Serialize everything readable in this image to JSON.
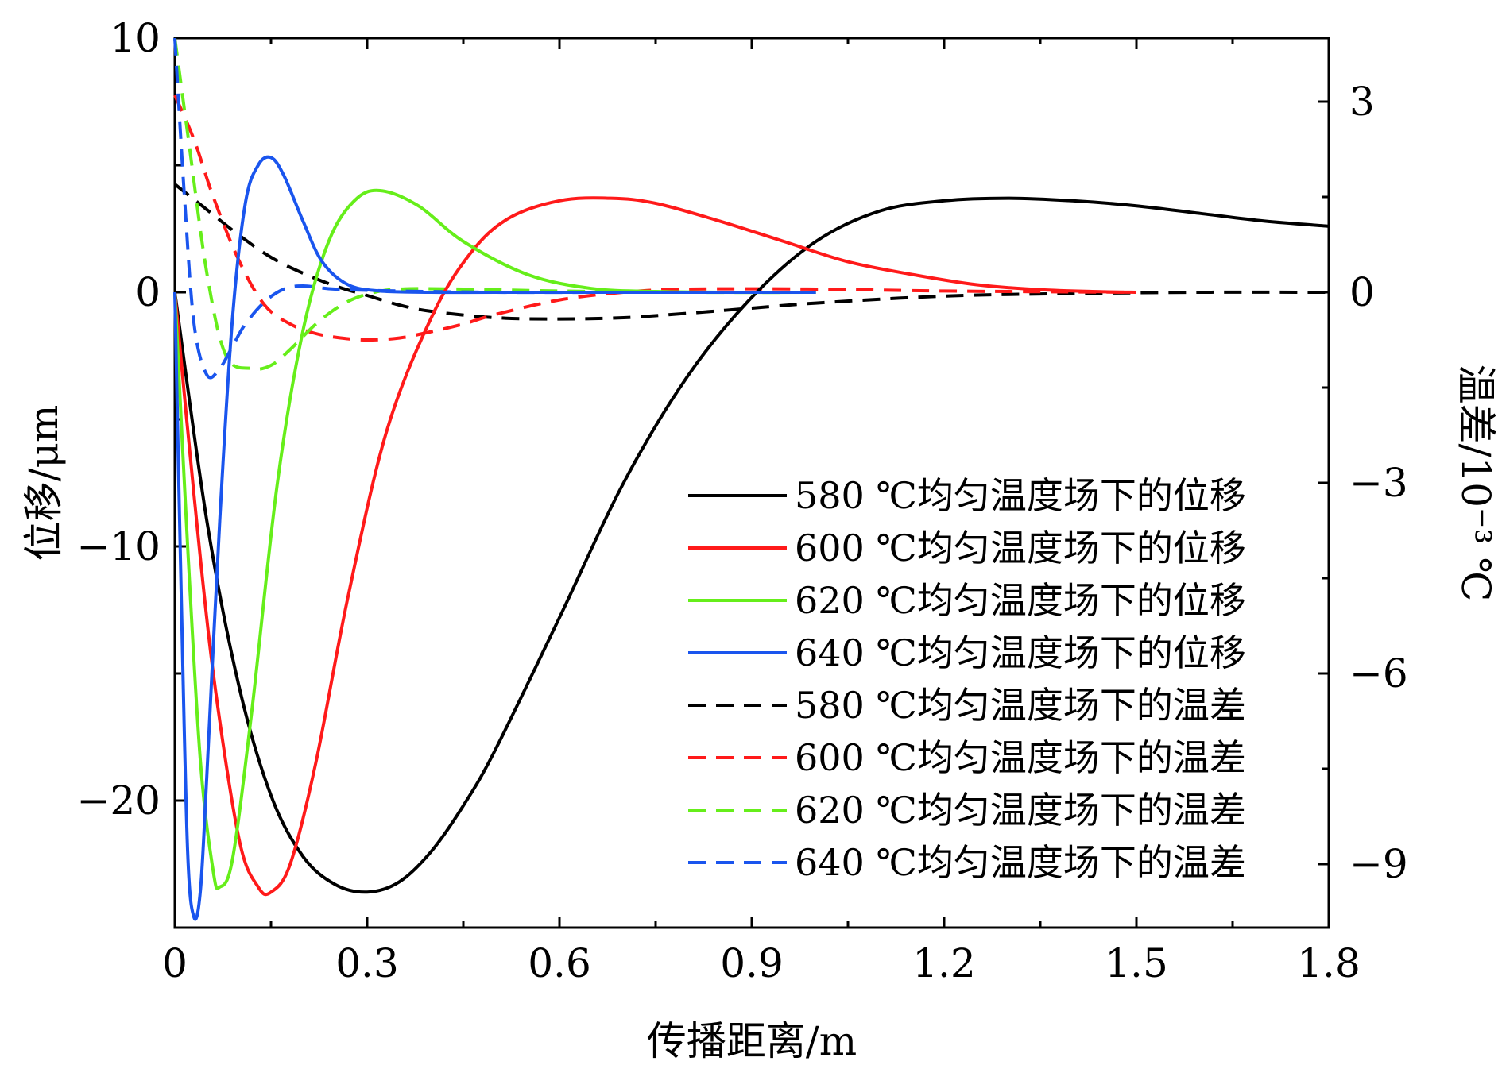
{
  "chart_data": {
    "type": "line",
    "xlabel": "传播距离/m",
    "ylabel_left": "位移/μm",
    "ylabel_right": "温差/10⁻³ ℃",
    "xlim": [
      0,
      1.8
    ],
    "ylim_left": [
      -25,
      10
    ],
    "ylim_right": [
      -10,
      4
    ],
    "x_ticks": [
      0,
      0.3,
      0.6,
      0.9,
      1.2,
      1.5,
      1.8
    ],
    "x_tick_labels": [
      "0",
      "0.3",
      "0.6",
      "0.9",
      "1.2",
      "1.5",
      "1.8"
    ],
    "y_left_ticks": [
      10,
      0,
      -10,
      -20
    ],
    "y_left_tick_labels": [
      "10",
      "0",
      "−10",
      "−20"
    ],
    "y_right_ticks": [
      3,
      0,
      -3,
      -6,
      -9
    ],
    "y_right_tick_labels": [
      "3",
      "0",
      "−3",
      "−6",
      "−9"
    ],
    "legend_position": "lower-right",
    "series": [
      {
        "name": "580 ℃均匀温度场下的位移",
        "axis": "left",
        "style": "solid",
        "color": "#000000",
        "x": [
          0,
          0.05,
          0.1,
          0.15,
          0.2,
          0.25,
          0.3,
          0.35,
          0.4,
          0.45,
          0.5,
          0.6,
          0.7,
          0.8,
          0.9,
          1.0,
          1.1,
          1.2,
          1.3,
          1.4,
          1.5,
          1.6,
          1.7,
          1.8
        ],
        "y": [
          0,
          -9,
          -15.5,
          -19.8,
          -22.2,
          -23.3,
          -23.6,
          -23.2,
          -22,
          -20.2,
          -18,
          -12.8,
          -7.5,
          -3.3,
          -0.2,
          2,
          3.2,
          3.6,
          3.7,
          3.6,
          3.4,
          3.1,
          2.8,
          2.6
        ]
      },
      {
        "name": "600 ℃均匀温度场下的位移",
        "axis": "left",
        "style": "solid",
        "color": "#ff1a1a",
        "x": [
          0,
          0.03,
          0.06,
          0.1,
          0.13,
          0.15,
          0.18,
          0.22,
          0.27,
          0.33,
          0.4,
          0.46,
          0.52,
          0.6,
          0.68,
          0.75,
          0.85,
          0.95,
          1.05,
          1.15,
          1.25,
          1.35,
          1.45,
          1.5
        ],
        "y": [
          0,
          -8,
          -15,
          -21.5,
          -23.4,
          -23.6,
          -22.5,
          -18.5,
          -12,
          -5.5,
          -1,
          1.5,
          2.9,
          3.6,
          3.7,
          3.5,
          2.8,
          2,
          1.2,
          0.7,
          0.3,
          0.1,
          0.02,
          0
        ]
      },
      {
        "name": "620 ℃均匀温度场下的位移",
        "axis": "left",
        "style": "solid",
        "color": "#66ee1a",
        "x": [
          0,
          0.02,
          0.04,
          0.06,
          0.07,
          0.09,
          0.12,
          0.16,
          0.2,
          0.24,
          0.28,
          0.32,
          0.38,
          0.45,
          0.55,
          0.65,
          0.75,
          0.85,
          1.0
        ],
        "y": [
          0,
          -10,
          -18.5,
          -22.8,
          -23.4,
          -22.3,
          -16.5,
          -7.5,
          -1.5,
          2,
          3.6,
          4,
          3.4,
          2,
          0.7,
          0.15,
          0.03,
          0,
          0
        ]
      },
      {
        "name": "640 ℃均匀温度场下的位移",
        "axis": "left",
        "style": "solid",
        "color": "#1a55ee",
        "x": [
          0,
          0.01,
          0.02,
          0.03,
          0.04,
          0.05,
          0.07,
          0.09,
          0.11,
          0.13,
          0.15,
          0.17,
          0.2,
          0.23,
          0.27,
          0.32,
          0.4,
          0.5,
          0.7,
          1.0
        ],
        "y": [
          0,
          -12,
          -22,
          -24.6,
          -23.5,
          -19,
          -9,
          -1,
          3.5,
          5,
          5.3,
          4.6,
          2.8,
          1.2,
          0.3,
          0.05,
          0,
          0,
          0,
          0
        ]
      },
      {
        "name": "580 ℃均匀温度场下的温差",
        "axis": "right",
        "style": "dashed",
        "color": "#000000",
        "x": [
          0,
          0.05,
          0.1,
          0.15,
          0.2,
          0.25,
          0.3,
          0.35,
          0.4,
          0.5,
          0.6,
          0.7,
          0.8,
          0.9,
          1.0,
          1.2,
          1.4,
          1.6,
          1.8
        ],
        "y": [
          1.7,
          1.3,
          0.9,
          0.55,
          0.3,
          0.1,
          -0.05,
          -0.2,
          -0.3,
          -0.4,
          -0.42,
          -0.4,
          -0.33,
          -0.25,
          -0.17,
          -0.06,
          -0.02,
          0,
          0
        ]
      },
      {
        "name": "600 ℃均匀温度场下的温差",
        "axis": "right",
        "style": "dashed",
        "color": "#ff1a1a",
        "x": [
          0,
          0.03,
          0.06,
          0.1,
          0.14,
          0.18,
          0.22,
          0.26,
          0.3,
          0.35,
          0.4,
          0.45,
          0.5,
          0.6,
          0.7,
          0.8,
          1.0,
          1.2,
          1.5
        ],
        "y": [
          3.1,
          2.4,
          1.5,
          0.5,
          -0.2,
          -0.5,
          -0.65,
          -0.72,
          -0.75,
          -0.72,
          -0.62,
          -0.5,
          -0.35,
          -0.12,
          0,
          0.05,
          0.05,
          0.02,
          0
        ]
      },
      {
        "name": "620 ℃均匀温度场下的温差",
        "axis": "right",
        "style": "dashed",
        "color": "#66ee1a",
        "x": [
          0,
          0.02,
          0.05,
          0.08,
          0.12,
          0.15,
          0.18,
          0.22,
          0.26,
          0.3,
          0.35,
          0.45,
          0.6,
          0.8,
          1.0
        ],
        "y": [
          4,
          2.5,
          0.3,
          -1.0,
          -1.2,
          -1.15,
          -0.9,
          -0.5,
          -0.2,
          -0.03,
          0.05,
          0.05,
          0.02,
          0,
          0
        ]
      },
      {
        "name": "640 ℃均匀温度场下的温差",
        "axis": "right",
        "style": "dashed",
        "color": "#1a55ee",
        "x": [
          0,
          0.015,
          0.03,
          0.05,
          0.07,
          0.09,
          0.11,
          0.14,
          0.17,
          0.2,
          0.25,
          0.35,
          0.5,
          0.7,
          1.0
        ],
        "y": [
          4,
          1.5,
          -0.5,
          -1.3,
          -1.2,
          -0.85,
          -0.5,
          -0.15,
          0.05,
          0.1,
          0.05,
          0.02,
          0,
          0,
          0
        ]
      }
    ]
  }
}
